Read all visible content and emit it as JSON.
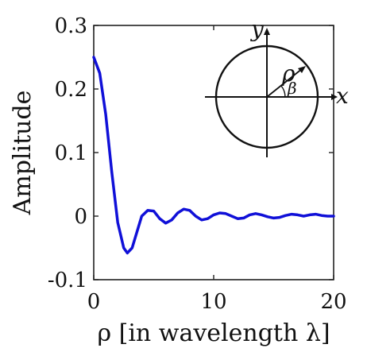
{
  "chart_data": {
    "type": "line",
    "xlabel": "ρ [in wavelength λ]",
    "ylabel": "Amplitude",
    "xlim": [
      0,
      20
    ],
    "ylim": [
      -0.1,
      0.3
    ],
    "x_ticks": [
      0,
      10,
      20
    ],
    "x_tick_labels": [
      "0",
      "10",
      "20"
    ],
    "y_ticks": [
      -0.1,
      0,
      0.1,
      0.2,
      0.3
    ],
    "y_tick_labels": [
      "-0.1",
      "0",
      "0.1",
      "0.2",
      "0.3"
    ],
    "grid": false,
    "series": [
      {
        "color": "#1010d8",
        "x": [
          0,
          0.5,
          1.0,
          1.5,
          2.0,
          2.5,
          2.8,
          3.2,
          3.6,
          4.0,
          4.5,
          5.0,
          5.5,
          6.0,
          6.5,
          7.0,
          7.5,
          8.0,
          8.5,
          9.0,
          9.5,
          10.0,
          10.5,
          11.0,
          11.5,
          12.0,
          12.5,
          13.0,
          13.5,
          14.0,
          14.5,
          15.0,
          15.5,
          16.0,
          16.5,
          17.0,
          17.5,
          18.0,
          18.5,
          19.0,
          19.5,
          20.0
        ],
        "y": [
          0.25,
          0.225,
          0.16,
          0.07,
          -0.01,
          -0.05,
          -0.058,
          -0.05,
          -0.025,
          0.0,
          0.009,
          0.008,
          -0.004,
          -0.011,
          -0.006,
          0.005,
          0.011,
          0.009,
          0.0,
          -0.006,
          -0.004,
          0.002,
          0.005,
          0.004,
          0.0,
          -0.004,
          -0.003,
          0.002,
          0.004,
          0.002,
          -0.001,
          -0.003,
          -0.002,
          0.001,
          0.003,
          0.002,
          0.0,
          0.002,
          0.003,
          0.001,
          0.0,
          0.0
        ]
      }
    ],
    "inset": {
      "labels": {
        "x": "x",
        "y": "y",
        "rho": "ρ",
        "beta": "β"
      }
    }
  }
}
